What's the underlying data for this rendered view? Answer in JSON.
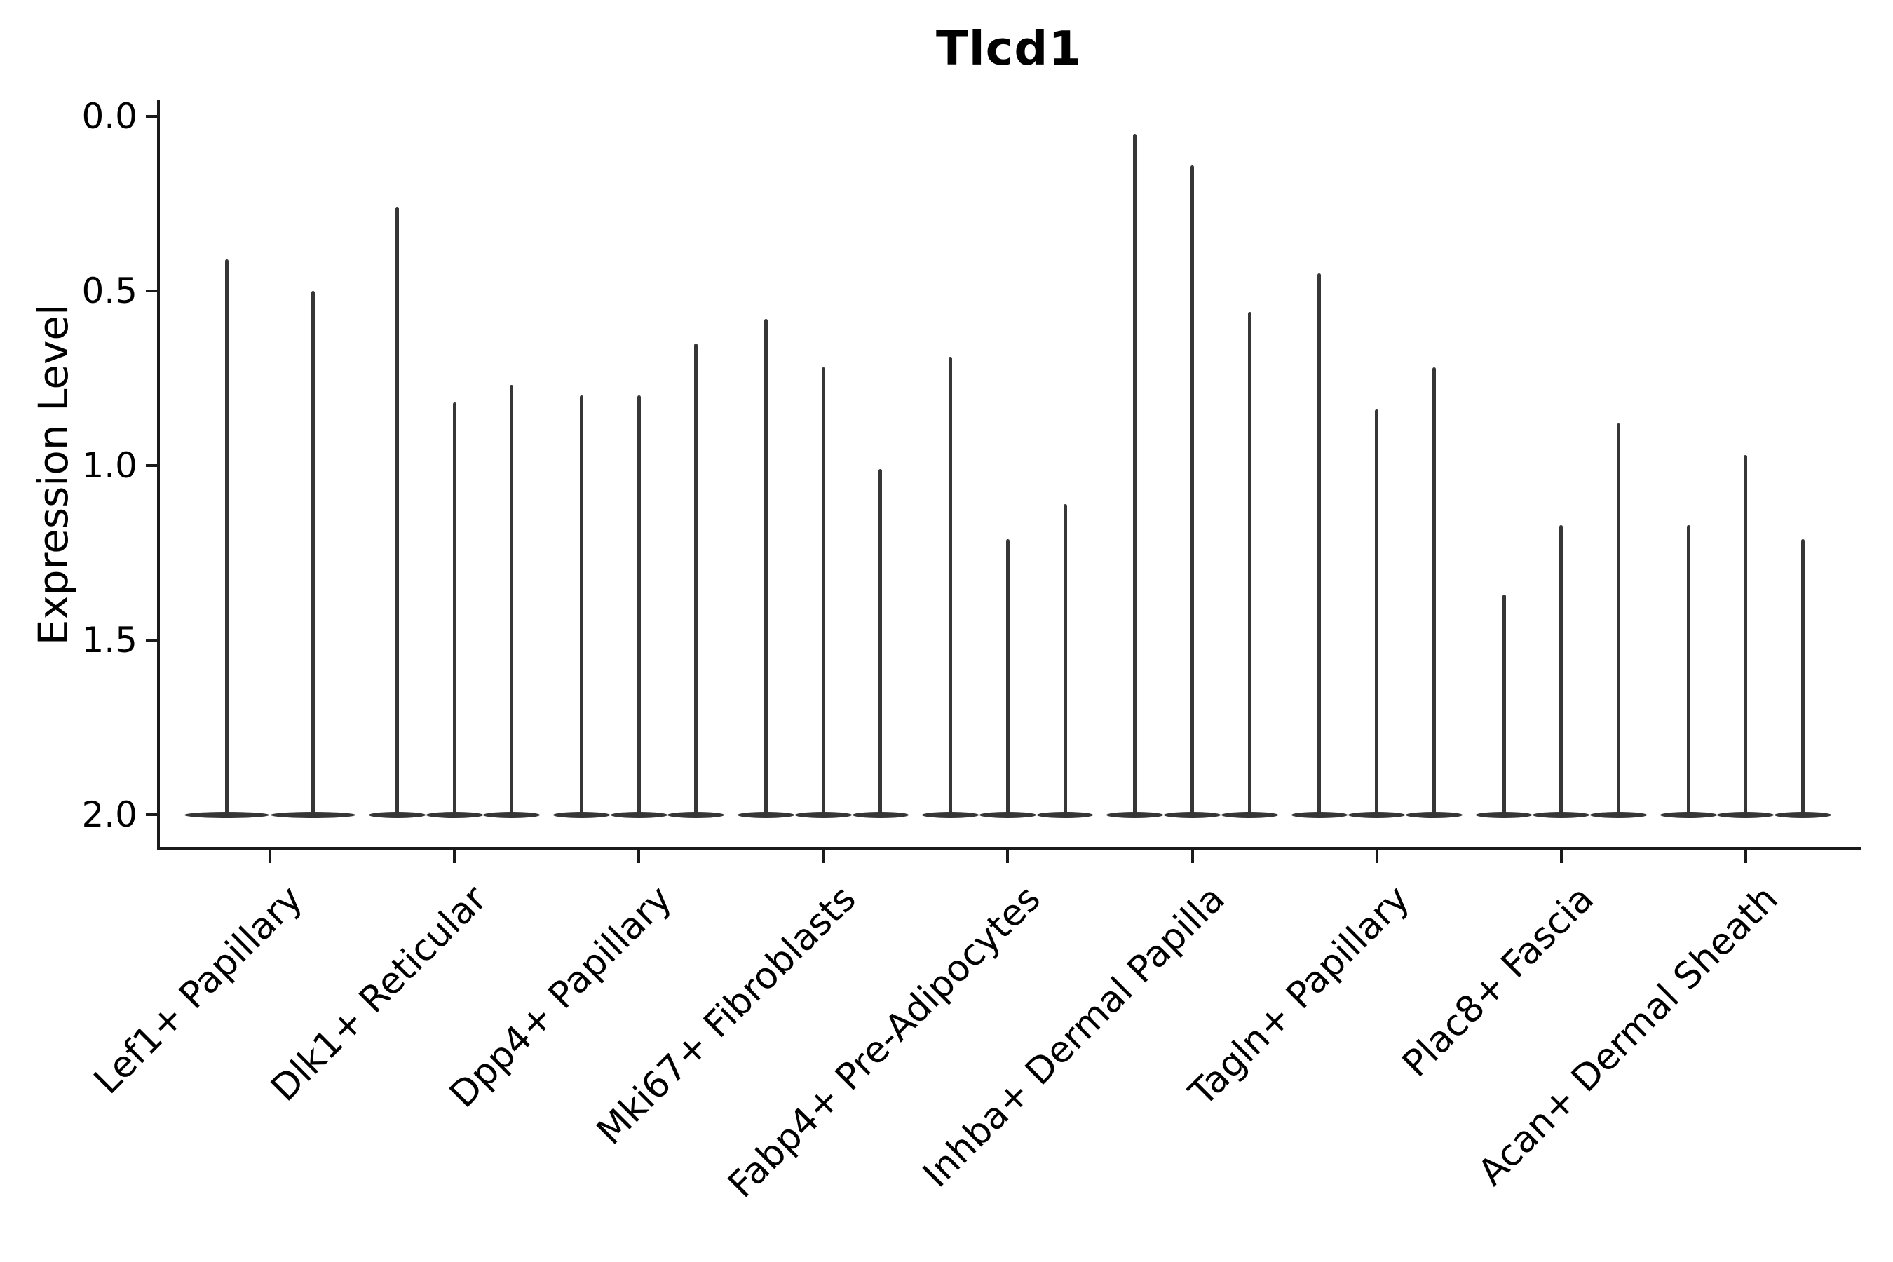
{
  "title": "Tlcd1",
  "axes": {
    "ylabel": "Expression Level",
    "ytick_labels": [
      "2.0",
      "1.5",
      "1.0",
      "0.5",
      "0.0"
    ]
  },
  "colors": {
    "violin": "#363636",
    "spine": "#1a1a1a",
    "text": "#000000",
    "background": "#ffffff"
  },
  "chart_data": {
    "type": "violin",
    "title": "Tlcd1",
    "xlabel": "",
    "ylabel": "Expression Level",
    "ylim": [
      0,
      2.0
    ],
    "yticks": [
      0.0,
      0.5,
      1.0,
      1.5,
      2.0
    ],
    "grid": false,
    "legend": "none",
    "description": "Needle-thin violins (expression mostly 0 with a thin tail up to a max value); each category holds grouped violins sharing a flat base at 0.",
    "categories": [
      "Lef1+ Papillary",
      "Dlk1+ Reticular",
      "Dpp4+ Papillary",
      "Mki67+ Fibroblasts",
      "Fabp4+ Pre-Adipocytes",
      "Inhba+ Dermal Papilla",
      "Tagln+ Papillary",
      "Plac8+ Fascia",
      "Acan+ Dermal Sheath"
    ],
    "series": [
      {
        "category": "Lef1+ Papillary",
        "violin_max_values": [
          1.59,
          1.5
        ]
      },
      {
        "category": "Dlk1+ Reticular",
        "violin_max_values": [
          1.74,
          1.18,
          1.23
        ]
      },
      {
        "category": "Dpp4+ Papillary",
        "violin_max_values": [
          1.2,
          1.2,
          1.35
        ]
      },
      {
        "category": "Mki67+ Fibroblasts",
        "violin_max_values": [
          1.42,
          1.28,
          0.99
        ]
      },
      {
        "category": "Fabp4+ Pre-Adipocytes",
        "violin_max_values": [
          1.31,
          0.79,
          0.89
        ]
      },
      {
        "category": "Inhba+ Dermal Papilla",
        "violin_max_values": [
          1.95,
          1.86,
          1.44
        ]
      },
      {
        "category": "Tagln+ Papillary",
        "violin_max_values": [
          1.55,
          1.16,
          1.28
        ]
      },
      {
        "category": "Plac8+ Fascia",
        "violin_max_values": [
          0.63,
          0.83,
          1.12
        ]
      },
      {
        "category": "Acan+ Dermal Sheath",
        "violin_max_values": [
          0.83,
          1.03,
          0.79
        ]
      }
    ]
  }
}
